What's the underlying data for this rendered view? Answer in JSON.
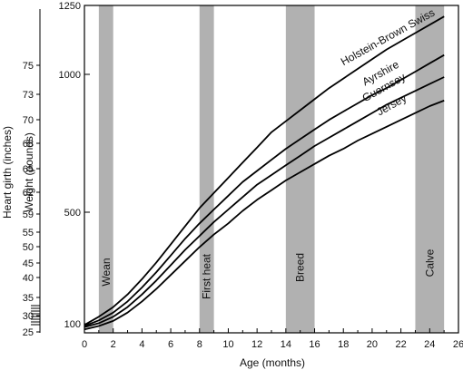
{
  "chart_data": {
    "type": "line",
    "xlabel": "Age (months)",
    "xlim": [
      0,
      26
    ],
    "x_ticks": [
      "0",
      "2",
      "4",
      "6",
      "8",
      "10",
      "12",
      "14",
      "16",
      "18",
      "20",
      "22",
      "24",
      "26"
    ],
    "y_weight": {
      "label": "Weight (pounds)",
      "ylim": [
        80,
        1250
      ],
      "ticks": [
        "100",
        "500",
        "1000",
        "1250"
      ]
    },
    "y_girth": {
      "label": "Heart girth (inches)",
      "ticks": [
        "25",
        "30",
        "35",
        "40",
        "45",
        "50",
        "55",
        "59",
        "62",
        "65",
        "68",
        "70",
        "73",
        "75"
      ]
    },
    "bands": [
      {
        "label": "Wean",
        "x": [
          1,
          2
        ]
      },
      {
        "label": "First heat",
        "x": [
          8,
          9
        ]
      },
      {
        "label": "Breed",
        "x": [
          14,
          16
        ]
      },
      {
        "label": "Calve",
        "x": [
          23,
          25
        ]
      }
    ],
    "series": [
      {
        "name": "Holstein-Brown Swiss",
        "x": [
          0,
          1,
          2,
          3,
          4,
          5,
          6,
          7,
          8,
          9,
          10,
          11,
          12,
          13,
          14,
          15,
          16,
          17,
          18,
          19,
          20,
          21,
          22,
          23,
          24,
          25
        ],
        "values": [
          95,
          125,
          160,
          205,
          260,
          320,
          385,
          450,
          515,
          570,
          625,
          680,
          735,
          790,
          830,
          870,
          910,
          950,
          985,
          1020,
          1055,
          1090,
          1120,
          1150,
          1180,
          1210
        ]
      },
      {
        "name": "Ayrshire",
        "x": [
          0,
          1,
          2,
          3,
          4,
          5,
          6,
          7,
          8,
          9,
          10,
          11,
          12,
          13,
          14,
          15,
          16,
          17,
          18,
          19,
          20,
          21,
          22,
          23,
          24,
          25
        ],
        "values": [
          90,
          112,
          140,
          180,
          230,
          285,
          345,
          405,
          460,
          510,
          560,
          610,
          650,
          690,
          730,
          765,
          800,
          835,
          865,
          895,
          925,
          950,
          980,
          1010,
          1040,
          1070
        ]
      },
      {
        "name": "Guernsey",
        "x": [
          0,
          1,
          2,
          3,
          4,
          5,
          6,
          7,
          8,
          9,
          10,
          11,
          12,
          13,
          14,
          15,
          16,
          17,
          18,
          19,
          20,
          21,
          22,
          23,
          24,
          25
        ],
        "values": [
          85,
          102,
          125,
          160,
          205,
          255,
          310,
          365,
          415,
          465,
          510,
          555,
          600,
          635,
          670,
          705,
          740,
          770,
          800,
          830,
          860,
          890,
          915,
          940,
          965,
          990
        ]
      },
      {
        "name": "Jersey",
        "x": [
          0,
          1,
          2,
          3,
          4,
          5,
          6,
          7,
          8,
          9,
          10,
          11,
          12,
          13,
          14,
          15,
          16,
          17,
          18,
          19,
          20,
          21,
          22,
          23,
          24,
          25
        ],
        "values": [
          75,
          90,
          110,
          140,
          180,
          225,
          275,
          325,
          375,
          420,
          460,
          505,
          545,
          580,
          615,
          645,
          675,
          705,
          730,
          760,
          785,
          810,
          835,
          860,
          885,
          905
        ]
      }
    ]
  }
}
